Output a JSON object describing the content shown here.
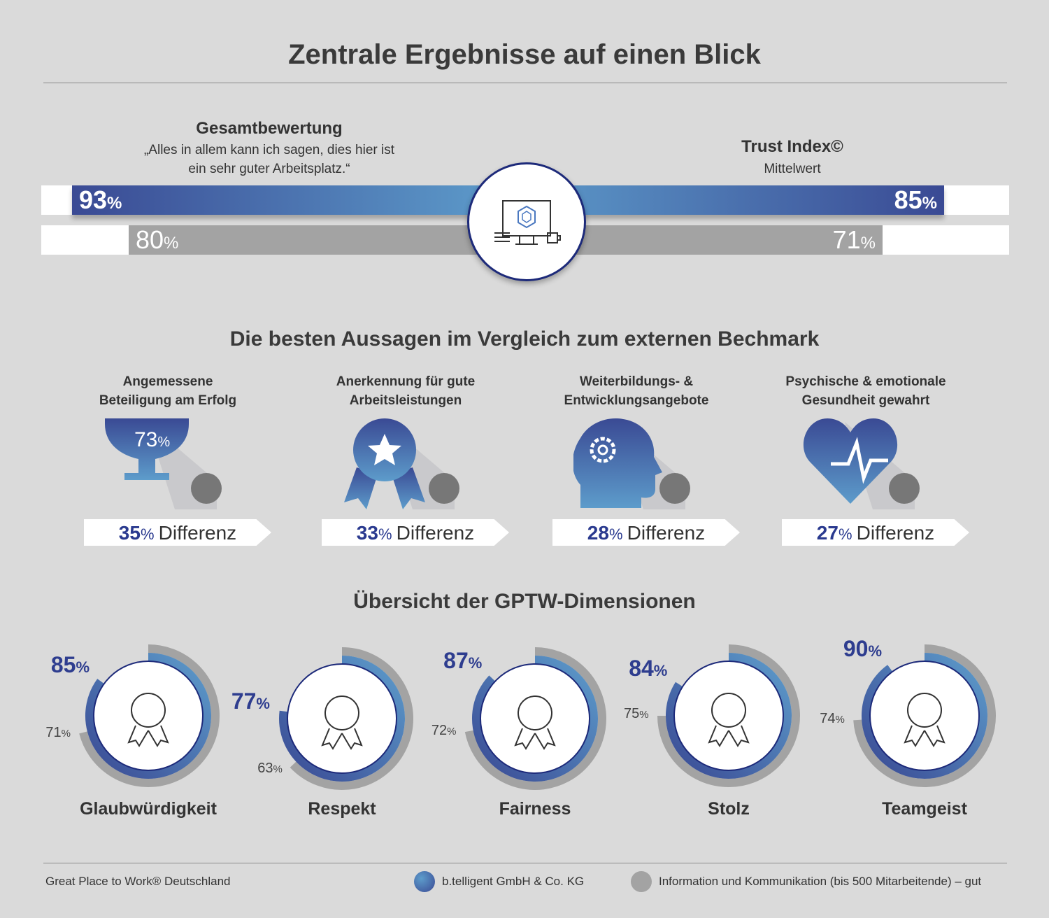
{
  "title": "Zentrale Ergebnisse auf einen Blick",
  "overall": {
    "heading": "Gesamtbewertung",
    "quote_line1": "„Alles in allem kann ich sagen, dies hier ist",
    "quote_line2": "ein sehr guter Arbeitsplatz.“",
    "company": 93,
    "benchmark": 80
  },
  "trust": {
    "heading": "Trust Index©",
    "sub": "Mittelwert",
    "company": 85,
    "benchmark": 71
  },
  "center_icon": "computer-workplace-icon",
  "best": {
    "heading": "Die besten Aussagen im Vergleich zum externen Bechmark",
    "items": [
      {
        "line1": "Angemessene",
        "line2": "Beteiligung am Erfolg",
        "value": 73,
        "diff": 35,
        "icon": "trophy-icon"
      },
      {
        "line1": "Anerkennung für gute",
        "line2": "Arbeitsleistungen",
        "diff": 33,
        "icon": "award-ribbon-icon"
      },
      {
        "line1": "Weiterbildungs- &",
        "line2": "Entwicklungsangebote",
        "diff": 28,
        "icon": "head-gear-icon"
      },
      {
        "line1": "Psychische & emotionale",
        "line2": "Gesundheit gewahrt",
        "diff": 27,
        "icon": "heart-pulse-icon"
      }
    ],
    "diff_label": "Differenz"
  },
  "dims": {
    "heading": "Übersicht der GPTW-Dimensionen",
    "items": [
      {
        "name": "Glaubwürdigkeit",
        "company": 85,
        "benchmark": 71,
        "icon": "certified-badge-icon"
      },
      {
        "name": "Respekt",
        "company": 77,
        "benchmark": 63,
        "icon": "hands-heart-icon"
      },
      {
        "name": "Fairness",
        "company": 87,
        "benchmark": 72,
        "icon": "handshake-icon"
      },
      {
        "name": "Stolz",
        "company": 84,
        "benchmark": 75,
        "icon": "hero-icon"
      },
      {
        "name": "Teamgeist",
        "company": 90,
        "benchmark": 74,
        "icon": "team-network-icon"
      }
    ]
  },
  "footer": {
    "source": "Great Place to Work® Deutschland",
    "legend_company": "b.telligent GmbH & Co. KG",
    "legend_benchmark": "Information und Kommunikation (bis 500 Mitarbeitende) – gut"
  },
  "colors": {
    "company_dark": "#3a4a94",
    "company_light": "#5d9ccb",
    "benchmark": "#a3a3a3",
    "accent_text": "#2e3d8f"
  }
}
